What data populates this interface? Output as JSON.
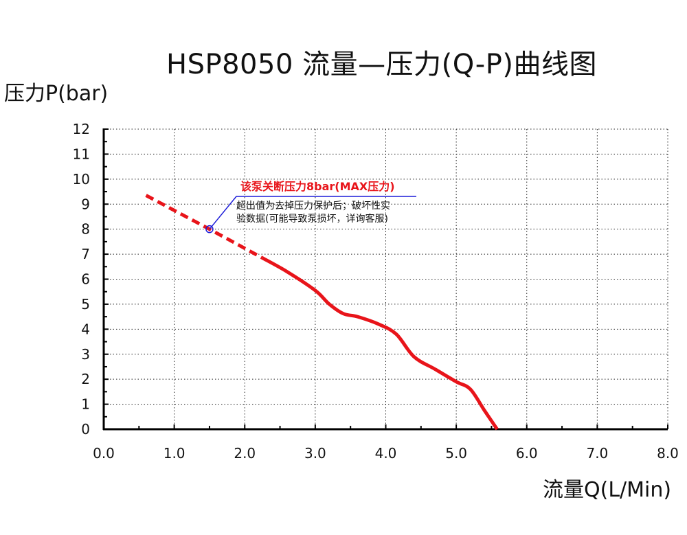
{
  "chart_data": {
    "type": "line",
    "title": "HSP8050 流量—压力(Q-P)曲线图",
    "xlabel": "流量Q(L/Min)",
    "ylabel": "压力P(bar)",
    "xlim": [
      0,
      8
    ],
    "ylim": [
      0,
      12
    ],
    "x_ticks": [
      "0.0",
      "1.0",
      "2.0",
      "3.0",
      "4.0",
      "5.0",
      "6.0",
      "7.0",
      "8.0"
    ],
    "y_ticks": [
      "0",
      "1",
      "2",
      "3",
      "4",
      "5",
      "6",
      "7",
      "8",
      "9",
      "10",
      "11",
      "12"
    ],
    "grid": true,
    "series": [
      {
        "style": "dashed",
        "color": "#e8141a",
        "x": [
          0.6,
          1.5,
          2.25
        ],
        "y": [
          9.35,
          8.0,
          6.85
        ]
      },
      {
        "style": "solid",
        "color": "#e8141a",
        "x": [
          2.25,
          2.6,
          3.0,
          3.2,
          3.4,
          3.6,
          3.9,
          4.15,
          4.4,
          4.7,
          5.0,
          5.2,
          5.4,
          5.58
        ],
        "y": [
          6.85,
          6.3,
          5.55,
          5.0,
          4.62,
          4.5,
          4.2,
          3.8,
          2.9,
          2.4,
          1.9,
          1.6,
          0.75,
          0.0
        ]
      }
    ],
    "annotation": {
      "x": 1.5,
      "y": 8.0,
      "marker_color": "#1b1bd8",
      "title": "该泵关断压力8bar(MAX压力)",
      "title_color": "#e8141a",
      "lines": [
        "超出值为去掉压力保护后；破坏性实",
        "验数据(可能导致泵损坏，详询客服)"
      ]
    }
  }
}
